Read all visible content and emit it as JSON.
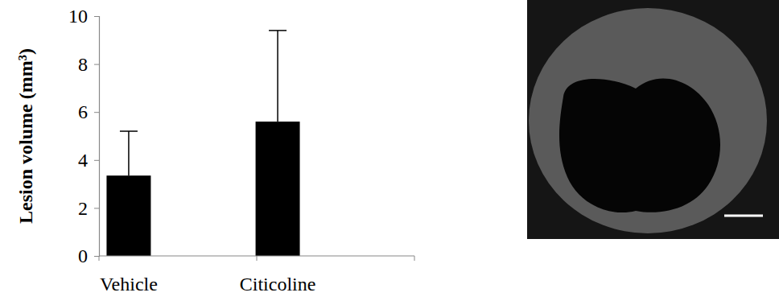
{
  "chart_data": {
    "type": "bar",
    "y_label": "Lesion volume (mm³)",
    "categories": [
      "Vehicle",
      "Citicoline"
    ],
    "values": [
      3.35,
      5.6
    ],
    "error": [
      1.85,
      3.8
    ],
    "color": "#000000",
    "ylim": [
      0,
      10
    ],
    "yticks": [
      0,
      2,
      4,
      6,
      8,
      10
    ],
    "grid": false
  }
}
